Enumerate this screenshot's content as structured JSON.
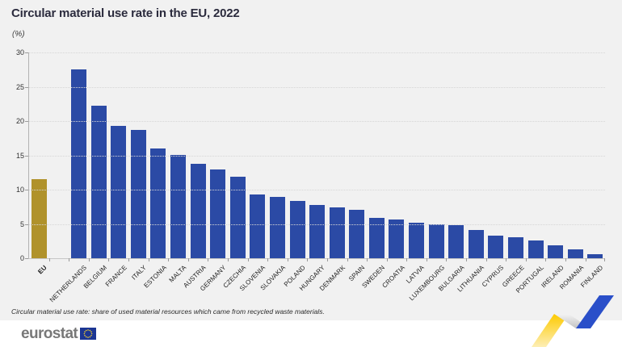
{
  "page": {
    "title": "Circular material use rate in the EU, 2022",
    "subtitle": "(%)",
    "footnote": "Circular material use rate: share of used material resources which came from recycled waste materials."
  },
  "logo": {
    "text": "eurostat",
    "flag": "eu-flag-icon"
  },
  "colors": {
    "bar_blue": "#2b4aa5",
    "bar_gold": "#b0922b",
    "chart_background": "#f1f1f1",
    "footer_background": "#ffffff",
    "grid": "#d6d6d6",
    "axis": "#b3b3b3",
    "title_text": "#2b2b3d",
    "logo_text": "#787878",
    "flag_blue": "#1c3693",
    "flag_star_yellow": "#f8d12e",
    "ribbon_yellow": "#fdca00",
    "ribbon_silver": "#c2c2c2",
    "ribbon_blue": "#2a4fc9"
  },
  "chart_data": {
    "type": "bar",
    "title": "Circular material use rate in the EU, 2022",
    "ylabel": "(%)",
    "xlabel": "",
    "ylim": [
      0,
      30
    ],
    "yticks": [
      0,
      5,
      10,
      15,
      20,
      25,
      30
    ],
    "grid": "horizontal-dotted",
    "legend": "none",
    "highlight": {
      "category": "EU",
      "color": "#b0922b"
    },
    "gap_after_first_bar": true,
    "categories": [
      "EU",
      "NETHERLANDS",
      "BELGIUM",
      "FRANCE",
      "ITALY",
      "ESTONIA",
      "MALTA",
      "AUSTRIA",
      "GERMANY",
      "CZECHIA",
      "SLOVENIA",
      "SLOVAKIA",
      "POLAND",
      "HUNGARY",
      "DENMARK",
      "SPAIN",
      "SWEDEN",
      "CROATIA",
      "LATVIA",
      "LUXEMBOURG",
      "BULGARIA",
      "LITHUANIA",
      "CYPRUS",
      "GREECE",
      "PORTUGAL",
      "IRELAND",
      "ROMANIA",
      "FINLAND"
    ],
    "values": [
      11.5,
      27.5,
      22.2,
      19.3,
      18.7,
      16.0,
      15.1,
      13.8,
      13.0,
      11.9,
      9.3,
      9.0,
      8.4,
      7.8,
      7.4,
      7.1,
      5.9,
      5.6,
      5.2,
      5.0,
      4.8,
      4.1,
      3.3,
      3.1,
      2.6,
      1.9,
      1.3,
      0.6
    ]
  }
}
